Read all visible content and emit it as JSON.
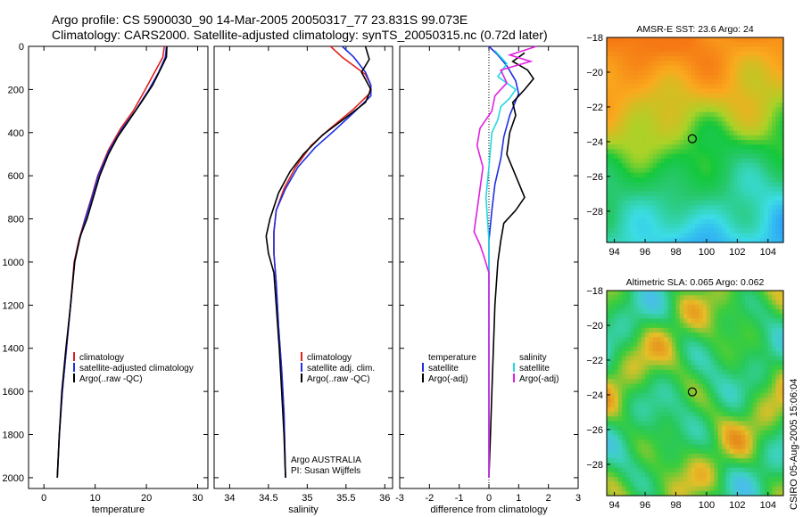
{
  "header": {
    "line1": "Argo profile: CS 5900030_90 14-Mar-2005 20050317_77 23.831S 99.073E",
    "line2": "Climatology: CARS2000. Satellite-adjusted climatology: synTS_20050315.nc (0.72d later)"
  },
  "colors": {
    "climatology": "#e0201c",
    "satellite": "#1f2fe0",
    "argo": "#000000",
    "sal_satellite": "#22d8e0",
    "sal_argo": "#e020e0"
  },
  "credit": "CSIRO 05-Aug-2005 15:06:04",
  "chart_data": [
    {
      "type": "line",
      "xlabel": "temperature",
      "ylabel": "",
      "xlim": [
        -3,
        32
      ],
      "ylim": [
        2050,
        0
      ],
      "xticks": [
        "0",
        "10",
        "20",
        "30"
      ],
      "yticks": [
        "0",
        "200",
        "400",
        "600",
        "800",
        "1000",
        "1200",
        "1400",
        "1600",
        "1800",
        "2000"
      ],
      "legend": [
        "climatology",
        "satellite-adjusted climatology",
        "Argo(..raw -QC)"
      ],
      "legend_position": "lower-right",
      "series": [
        {
          "name": "climatology",
          "color_key": "climatology",
          "points": [
            [
              23.5,
              0
            ],
            [
              23.2,
              50
            ],
            [
              21.6,
              120
            ],
            [
              19.8,
              200
            ],
            [
              17.4,
              300
            ],
            [
              15.0,
              380
            ],
            [
              12.6,
              480
            ],
            [
              10.5,
              600
            ],
            [
              9.3,
              700
            ],
            [
              8.0,
              800
            ],
            [
              6.8,
              900
            ],
            [
              5.9,
              1000
            ],
            [
              5.2,
              1200
            ],
            [
              4.4,
              1400
            ],
            [
              3.6,
              1600
            ],
            [
              3.0,
              1800
            ],
            [
              2.6,
              2000
            ]
          ]
        },
        {
          "name": "satellite-adjusted climatology",
          "color_key": "satellite",
          "points": [
            [
              23.9,
              0
            ],
            [
              23.7,
              50
            ],
            [
              22.4,
              120
            ],
            [
              20.5,
              200
            ],
            [
              17.8,
              300
            ],
            [
              15.3,
              380
            ],
            [
              12.8,
              480
            ],
            [
              10.6,
              600
            ],
            [
              9.4,
              700
            ],
            [
              8.1,
              800
            ],
            [
              6.9,
              900
            ],
            [
              6.0,
              1000
            ],
            [
              5.2,
              1200
            ],
            [
              4.4,
              1400
            ],
            [
              3.6,
              1600
            ],
            [
              3.0,
              1800
            ],
            [
              2.6,
              2000
            ]
          ]
        },
        {
          "name": "Argo(..raw -QC)",
          "color_key": "argo",
          "points": [
            [
              24.0,
              0
            ],
            [
              23.9,
              50
            ],
            [
              22.9,
              100
            ],
            [
              21.2,
              180
            ],
            [
              19.0,
              260
            ],
            [
              16.7,
              340
            ],
            [
              14.4,
              420
            ],
            [
              12.6,
              500
            ],
            [
              10.9,
              600
            ],
            [
              9.9,
              680
            ],
            [
              8.4,
              800
            ],
            [
              7.1,
              880
            ],
            [
              6.0,
              1000
            ],
            [
              5.2,
              1200
            ],
            [
              4.3,
              1400
            ],
            [
              3.5,
              1600
            ],
            [
              3.0,
              1800
            ],
            [
              2.6,
              2000
            ]
          ]
        }
      ]
    },
    {
      "type": "line",
      "xlabel": "salinity",
      "ylabel": "",
      "xlim": [
        33.8,
        36.1
      ],
      "ylim": [
        2050,
        0
      ],
      "xticks": [
        "34",
        "34.5",
        "35",
        "35.5",
        "36"
      ],
      "legend": [
        "climatology",
        "satellite adj. clim.",
        "Argo(..raw -QC)"
      ],
      "legend_position": "lower-right",
      "annotation": [
        "Argo AUSTRALIA",
        "PI: Susan Wijffels"
      ],
      "series": [
        {
          "name": "climatology",
          "color_key": "climatology",
          "points": [
            [
              35.3,
              0
            ],
            [
              35.45,
              50
            ],
            [
              35.75,
              130
            ],
            [
              35.82,
              180
            ],
            [
              35.8,
              220
            ],
            [
              35.6,
              290
            ],
            [
              35.3,
              380
            ],
            [
              35.05,
              460
            ],
            [
              34.85,
              560
            ],
            [
              34.7,
              660
            ],
            [
              34.6,
              760
            ],
            [
              34.57,
              860
            ],
            [
              34.57,
              960
            ],
            [
              34.6,
              1100
            ],
            [
              34.63,
              1300
            ],
            [
              34.67,
              1500
            ],
            [
              34.7,
              1700
            ],
            [
              34.72,
              2000
            ]
          ]
        },
        {
          "name": "satellite adj. clim.",
          "color_key": "satellite",
          "points": [
            [
              35.45,
              0
            ],
            [
              35.6,
              50
            ],
            [
              35.75,
              120
            ],
            [
              35.82,
              180
            ],
            [
              35.82,
              230
            ],
            [
              35.62,
              300
            ],
            [
              35.35,
              390
            ],
            [
              35.1,
              470
            ],
            [
              34.88,
              560
            ],
            [
              34.72,
              660
            ],
            [
              34.6,
              760
            ],
            [
              34.57,
              860
            ],
            [
              34.57,
              960
            ],
            [
              34.6,
              1100
            ],
            [
              34.63,
              1300
            ],
            [
              34.67,
              1500
            ],
            [
              34.7,
              1700
            ],
            [
              34.72,
              2000
            ]
          ]
        },
        {
          "name": "Argo(..raw -QC)",
          "color_key": "argo",
          "points": [
            [
              35.75,
              0
            ],
            [
              35.8,
              60
            ],
            [
              35.7,
              120
            ],
            [
              35.82,
              200
            ],
            [
              35.75,
              260
            ],
            [
              35.5,
              330
            ],
            [
              35.2,
              410
            ],
            [
              34.95,
              500
            ],
            [
              34.78,
              580
            ],
            [
              34.63,
              680
            ],
            [
              34.52,
              800
            ],
            [
              34.47,
              880
            ],
            [
              34.5,
              960
            ],
            [
              34.57,
              1050
            ],
            [
              34.6,
              1200
            ],
            [
              34.64,
              1400
            ],
            [
              34.67,
              1600
            ],
            [
              34.7,
              1800
            ],
            [
              34.72,
              2000
            ]
          ]
        }
      ]
    },
    {
      "type": "line",
      "xlabel": "difference from climatology",
      "ylabel": "",
      "xlim": [
        -3,
        3
      ],
      "ylim": [
        2050,
        0
      ],
      "xticks": [
        "-3",
        "-2",
        "-1",
        "0",
        "1",
        "2",
        "3"
      ],
      "legend": [
        "temperature",
        "satellite",
        "Argo(-adj)",
        "salinity",
        "satellite",
        "Argo(-adj)"
      ],
      "legend_position": "lower-center",
      "series": [
        {
          "name": "satellite",
          "color_key": "satellite",
          "points": [
            [
              0.0,
              0
            ],
            [
              0.3,
              40
            ],
            [
              0.6,
              90
            ],
            [
              0.9,
              160
            ],
            [
              1.0,
              220
            ],
            [
              0.7,
              320
            ],
            [
              0.5,
              420
            ],
            [
              0.4,
              520
            ],
            [
              0.2,
              640
            ],
            [
              0.1,
              760
            ],
            [
              0.0,
              900
            ],
            [
              0.0,
              1100
            ],
            [
              0.0,
              2000
            ]
          ]
        },
        {
          "name": "Argo(-adj)",
          "color_key": "argo",
          "points": [
            [
              1.2,
              30
            ],
            [
              0.8,
              70
            ],
            [
              1.3,
              110
            ],
            [
              1.5,
              150
            ],
            [
              1.2,
              200
            ],
            [
              0.8,
              260
            ],
            [
              0.9,
              320
            ],
            [
              0.7,
              400
            ],
            [
              0.6,
              500
            ],
            [
              0.9,
              600
            ],
            [
              1.2,
              700
            ],
            [
              0.9,
              760
            ],
            [
              0.5,
              820
            ],
            [
              0.4,
              900
            ],
            [
              0.3,
              1000
            ],
            [
              0.2,
              1200
            ],
            [
              0.15,
              1400
            ],
            [
              0.1,
              1600
            ],
            [
              0.05,
              1800
            ],
            [
              0.0,
              2000
            ]
          ]
        },
        {
          "name": "satellite",
          "color_key": "sal_satellite",
          "points": [
            [
              0.2,
              20
            ],
            [
              0.6,
              80
            ],
            [
              0.3,
              140
            ],
            [
              0.9,
              200
            ],
            [
              0.7,
              240
            ],
            [
              0.4,
              280
            ],
            [
              0.3,
              340
            ],
            [
              0.1,
              400
            ],
            [
              0.0,
              560
            ],
            [
              -0.1,
              700
            ],
            [
              0.0,
              900
            ],
            [
              0.0,
              1200
            ],
            [
              0.0,
              2000
            ]
          ]
        },
        {
          "name": "Argo(-adj)",
          "color_key": "sal_argo",
          "points": [
            [
              1.6,
              0
            ],
            [
              0.7,
              40
            ],
            [
              1.4,
              70
            ],
            [
              0.4,
              110
            ],
            [
              0.6,
              170
            ],
            [
              0.2,
              230
            ],
            [
              0.1,
              300
            ],
            [
              -0.3,
              380
            ],
            [
              -0.4,
              460
            ],
            [
              -0.2,
              560
            ],
            [
              -0.3,
              660
            ],
            [
              -0.4,
              760
            ],
            [
              -0.5,
              860
            ],
            [
              -0.3,
              920
            ],
            [
              -0.2,
              960
            ],
            [
              0.0,
              1050
            ],
            [
              0.0,
              1200
            ],
            [
              0.0,
              2000
            ]
          ]
        }
      ]
    },
    {
      "type": "heatmap",
      "title": "AMSR-E SST: 23.6 Argo: 24",
      "xlim": [
        93.5,
        105
      ],
      "ylim": [
        -29.8,
        -18
      ],
      "xticks": [
        "94",
        "96",
        "98",
        "100",
        "102",
        "104"
      ],
      "yticks": [
        "-18",
        "-20",
        "-22",
        "-24",
        "-26",
        "-28"
      ],
      "marker": {
        "lon": 99.07,
        "lat": -23.83
      }
    },
    {
      "type": "heatmap",
      "title": "Altimetric SLA: 0.065 Argo: 0.062",
      "xlim": [
        93.5,
        105
      ],
      "ylim": [
        -29.8,
        -18
      ],
      "xticks": [
        "94",
        "96",
        "98",
        "100",
        "102",
        "104"
      ],
      "yticks": [
        "-18",
        "-20",
        "-22",
        "-24",
        "-26",
        "-28"
      ],
      "marker": {
        "lon": 99.07,
        "lat": -23.83
      }
    }
  ]
}
